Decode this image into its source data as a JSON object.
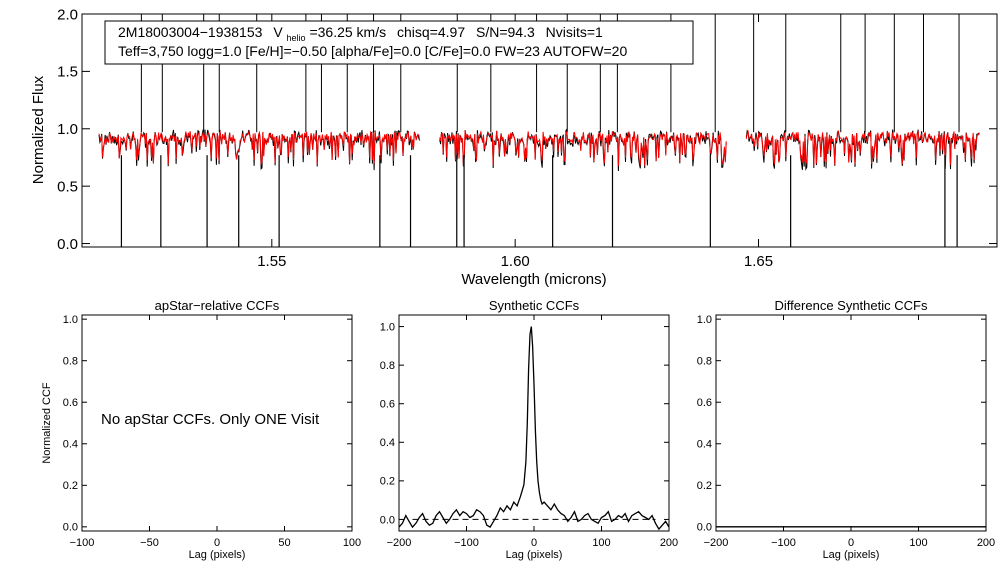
{
  "figure": {
    "colors": {
      "observed": "#000000",
      "model": "#ff0000",
      "axes": "#000000"
    }
  },
  "chart_data": [
    {
      "type": "line",
      "panel": "spectrum",
      "title": "",
      "xlabel": "Wavelength (microns)",
      "ylabel": "Normalized Flux",
      "xlim": [
        1.511,
        1.699
      ],
      "ylim": [
        -0.03,
        2.0
      ],
      "xticks": [
        1.55,
        1.6,
        1.65
      ],
      "xtick_labels": [
        "1.55",
        "1.60",
        "1.65"
      ],
      "yticks": [
        0.0,
        0.5,
        1.0,
        1.5,
        2.0
      ],
      "ytick_labels": [
        "0.0",
        "0.5",
        "1.0",
        "1.5",
        "2.0"
      ],
      "chip_ranges": [
        [
          1.5145,
          1.5805
        ],
        [
          1.5845,
          1.6435
        ],
        [
          1.6475,
          1.6955
        ]
      ],
      "continuum_level": 0.97,
      "annotation": {
        "line1_star": "2M18003004−1938153",
        "line1_v": "V",
        "line1_v_sub": "helio",
        "line1_v_value": "=36.25 km/s",
        "line1_chisq": "chisq=4.97",
        "line1_sn": "S/N=94.3",
        "line1_nvisits": "Nvisits=1",
        "line2": "Teff=3,750 logg=1.0 [Fe/H]=−0.50 [alpha/Fe]=0.0 [C/Fe]=0.0 FW=23 AUTOFW=20"
      },
      "series": [
        {
          "name": "observed spectrum",
          "color": "#000000"
        },
        {
          "name": "best-fit model",
          "color": "#ff0000"
        }
      ],
      "spikes_up": [
        1.5232,
        1.5275,
        1.536,
        1.5392,
        1.5469,
        1.557,
        1.5602,
        1.5655,
        1.5709,
        1.5765,
        1.5881,
        1.595,
        1.6044,
        1.6107,
        1.6175,
        1.621,
        1.632,
        1.6411,
        1.649,
        1.6556,
        1.6669,
        1.6719,
        1.6779,
        1.6839,
        1.6912
      ],
      "spikes_down": [
        1.5191,
        1.5272,
        1.5367,
        1.5432,
        1.5515,
        1.5722,
        1.5785,
        1.588,
        1.5895,
        1.6077,
        1.62,
        1.6401,
        1.6566,
        1.6883,
        1.6908
      ]
    },
    {
      "type": "line",
      "panel": "apstar",
      "title": "apStar−relative CCFs",
      "xlabel": "Lag (pixels)",
      "ylabel": "Normalized CCF",
      "xlim": [
        -100,
        100
      ],
      "ylim": [
        -0.02,
        1.02
      ],
      "xticks": [
        -100,
        -50,
        0,
        50,
        100
      ],
      "xtick_labels": [
        "−100",
        "−50",
        "0",
        "50",
        "100"
      ],
      "yticks": [
        0.0,
        0.2,
        0.4,
        0.6,
        0.8,
        1.0
      ],
      "ytick_labels": [
        "0.0",
        "0.2",
        "0.4",
        "0.6",
        "0.8",
        "1.0"
      ],
      "note": "No apStar CCFs.  Only ONE Visit",
      "series": []
    },
    {
      "type": "line",
      "panel": "synthetic",
      "title": "Synthetic CCFs",
      "xlabel": "Lag (pixels)",
      "ylabel": "",
      "xlim": [
        -200,
        200
      ],
      "ylim": [
        -0.06,
        1.06
      ],
      "xticks": [
        -200,
        -100,
        0,
        100,
        200
      ],
      "xtick_labels": [
        "−200",
        "−100",
        "0",
        "100",
        "200"
      ],
      "yticks": [
        0.0,
        0.2,
        0.4,
        0.6,
        0.8,
        1.0
      ],
      "ytick_labels": [
        "0.0",
        "0.2",
        "0.4",
        "0.6",
        "0.8",
        "1.0"
      ],
      "zero_line": 0.0,
      "series": [
        {
          "name": "synthetic CCF",
          "x": [
            -200,
            -195,
            -190,
            -185,
            -180,
            -175,
            -170,
            -165,
            -160,
            -155,
            -150,
            -145,
            -140,
            -135,
            -130,
            -125,
            -120,
            -115,
            -110,
            -105,
            -100,
            -95,
            -90,
            -85,
            -80,
            -75,
            -70,
            -65,
            -60,
            -55,
            -50,
            -45,
            -40,
            -35,
            -30,
            -25,
            -20,
            -15,
            -12,
            -10,
            -8,
            -6,
            -4,
            -2,
            0,
            2,
            4,
            6,
            8,
            10,
            12,
            15,
            20,
            25,
            30,
            35,
            40,
            45,
            50,
            55,
            60,
            65,
            70,
            75,
            80,
            85,
            90,
            95,
            100,
            105,
            110,
            115,
            120,
            125,
            130,
            135,
            140,
            145,
            150,
            155,
            160,
            165,
            170,
            175,
            180,
            185,
            190,
            195,
            200
          ],
          "y": [
            -0.04,
            -0.02,
            0.02,
            -0.01,
            -0.04,
            -0.02,
            0.01,
            0.03,
            -0.01,
            -0.03,
            -0.02,
            0.02,
            0.04,
            0.01,
            -0.02,
            0.0,
            0.03,
            0.05,
            0.02,
            0.04,
            0.03,
            0.01,
            0.02,
            0.05,
            0.04,
            0.02,
            -0.03,
            -0.04,
            -0.01,
            0.02,
            0.06,
            0.04,
            0.07,
            0.05,
            0.09,
            0.07,
            0.12,
            0.18,
            0.3,
            0.5,
            0.78,
            0.96,
            1.0,
            0.9,
            0.7,
            0.46,
            0.3,
            0.2,
            0.14,
            0.1,
            0.08,
            0.09,
            0.07,
            0.05,
            0.08,
            0.05,
            0.03,
            0.02,
            -0.01,
            0.01,
            0.04,
            -0.01,
            0.0,
            0.02,
            0.03,
            0.0,
            -0.01,
            -0.02,
            0.01,
            0.02,
            0.04,
            -0.01,
            0.0,
            0.02,
            0.01,
            0.03,
            -0.01,
            0.02,
            0.03,
            0.04,
            0.02,
            0.01,
            0.0,
            0.02,
            -0.02,
            -0.05,
            -0.03,
            -0.01,
            -0.04
          ]
        }
      ]
    },
    {
      "type": "line",
      "panel": "difference",
      "title": "Difference Synthetic CCFs",
      "xlabel": "Lag (pixels)",
      "ylabel": "",
      "xlim": [
        -200,
        200
      ],
      "ylim": [
        -0.02,
        1.02
      ],
      "xticks": [
        -200,
        -100,
        0,
        100,
        200
      ],
      "xtick_labels": [
        "−200",
        "−100",
        "0",
        "100",
        "200"
      ],
      "yticks": [
        0.0,
        0.2,
        0.4,
        0.6,
        0.8,
        1.0
      ],
      "ytick_labels": [
        "0.0",
        "0.2",
        "0.4",
        "0.6",
        "0.8",
        "1.0"
      ],
      "series": [
        {
          "name": "difference CCF",
          "x": [
            -200,
            200
          ],
          "y": [
            0.0,
            0.0
          ]
        }
      ]
    }
  ]
}
